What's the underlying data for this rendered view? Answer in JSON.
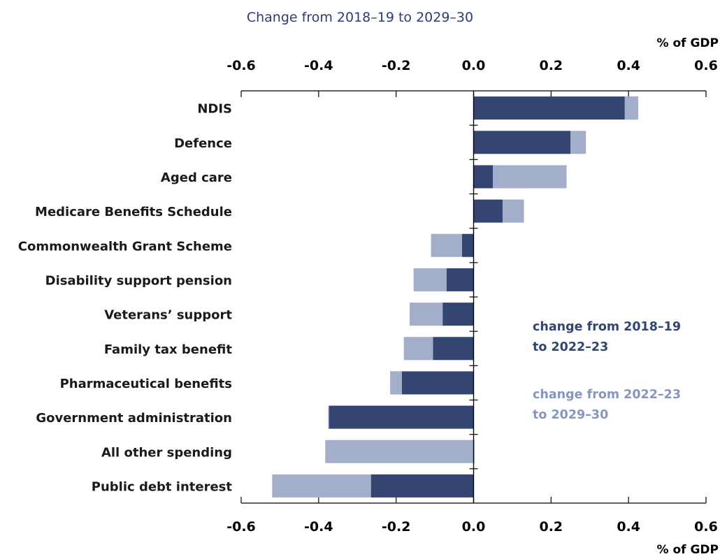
{
  "chart_data": {
    "type": "bar",
    "orientation": "horizontal",
    "stacked": true,
    "subtitle": "Change from 2018–19 to 2029–30",
    "unit_label": "% of GDP",
    "xlim": [
      -0.6,
      0.6
    ],
    "ticks": [
      "-0.6",
      "-0.4",
      "-0.2",
      "0.0",
      "0.2",
      "0.4",
      "0.6"
    ],
    "tick_values": [
      -0.6,
      -0.4,
      -0.2,
      0.0,
      0.2,
      0.4,
      0.6
    ],
    "categories": [
      "NDIS",
      "Defence",
      "Aged care",
      "Medicare Benefits Schedule",
      "Commonwealth Grant Scheme",
      "Disability support pension",
      "Veterans’ support",
      "Family tax benefit",
      "Pharmaceutical benefits",
      "Government administration",
      "All other spending",
      "Public debt interest"
    ],
    "series": [
      {
        "name": "change from 2018–19 to 2022–23",
        "color": "#354571",
        "values": [
          0.425,
          0.25,
          0.05,
          0.075,
          -0.03,
          -0.07,
          -0.08,
          -0.105,
          -0.215,
          -0.375,
          0.002,
          -0.265
        ]
      },
      {
        "name": "change from 2022–23 to 2029–30",
        "color": "#a3aecb",
        "values": [
          -0.035,
          0.04,
          0.19,
          0.055,
          -0.08,
          -0.085,
          -0.085,
          -0.075,
          0.03,
          0.002,
          -0.385,
          -0.255
        ]
      }
    ],
    "legend": [
      {
        "line1": "change from 2018–19",
        "line2": "to 2022–23",
        "color": "#354571"
      },
      {
        "line1": "change from 2022–23",
        "line2": "to 2029–30",
        "color": "#8796bf"
      }
    ],
    "legend_position": "right"
  }
}
